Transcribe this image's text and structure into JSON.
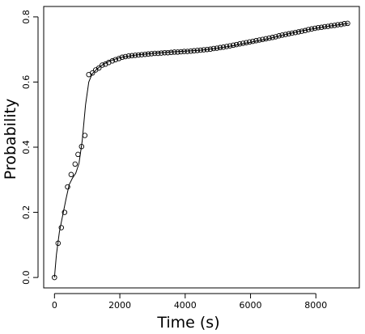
{
  "chart_data": {
    "type": "scatter",
    "title": "",
    "xlabel": "Time (s)",
    "ylabel": "Probability",
    "xlim": [
      0,
      9000
    ],
    "ylim": [
      0,
      0.8
    ],
    "x_ticks": [
      0,
      2000,
      4000,
      6000,
      8000
    ],
    "y_ticks": [
      0.0,
      0.2,
      0.4,
      0.6,
      0.8
    ],
    "x_tick_labels": [
      "0",
      "2000",
      "4000",
      "6000",
      "8000"
    ],
    "y_tick_labels": [
      "0.0",
      "0.2",
      "0.4",
      "0.6",
      "0.8"
    ],
    "grid": false,
    "legend": "none",
    "series": [
      {
        "kind": "points",
        "marker": "open-circle",
        "x": [
          0,
          110,
          210,
          310,
          400,
          510,
          630,
          720,
          830,
          930,
          1050,
          1160,
          1260,
          1360,
          1460,
          1560,
          1660,
          1770,
          1870,
          1970,
          2070,
          2170,
          2270,
          2370,
          2470,
          2570,
          2670,
          2770,
          2870,
          2970,
          3070,
          3170,
          3270,
          3370,
          3470,
          3570,
          3670,
          3770,
          3870,
          3970,
          4070,
          4170,
          4270,
          4370,
          4470,
          4570,
          4670,
          4770,
          4870,
          4970,
          5070,
          5170,
          5270,
          5370,
          5470,
          5570,
          5670,
          5770,
          5870,
          5970,
          6070,
          6170,
          6270,
          6370,
          6470,
          6570,
          6670,
          6770,
          6870,
          6970,
          7070,
          7170,
          7270,
          7370,
          7470,
          7570,
          7670,
          7770,
          7870,
          7970,
          8070,
          8170,
          8270,
          8370,
          8470,
          8570,
          8670,
          8770,
          8870,
          8970
        ],
        "y": [
          0.0,
          0.105,
          0.153,
          0.2,
          0.278,
          0.316,
          0.348,
          0.378,
          0.402,
          0.436,
          0.623,
          0.628,
          0.637,
          0.643,
          0.652,
          0.655,
          0.66,
          0.665,
          0.669,
          0.672,
          0.676,
          0.678,
          0.68,
          0.681,
          0.682,
          0.683,
          0.684,
          0.685,
          0.686,
          0.687,
          0.688,
          0.688,
          0.689,
          0.69,
          0.69,
          0.691,
          0.692,
          0.692,
          0.693,
          0.694,
          0.694,
          0.695,
          0.696,
          0.697,
          0.698,
          0.699,
          0.7,
          0.701,
          0.703,
          0.704,
          0.706,
          0.707,
          0.709,
          0.711,
          0.713,
          0.715,
          0.717,
          0.719,
          0.721,
          0.723,
          0.725,
          0.727,
          0.729,
          0.731,
          0.733,
          0.735,
          0.737,
          0.739,
          0.742,
          0.744,
          0.746,
          0.748,
          0.75,
          0.752,
          0.754,
          0.756,
          0.758,
          0.761,
          0.763,
          0.765,
          0.767,
          0.768,
          0.77,
          0.771,
          0.773,
          0.774,
          0.776,
          0.777,
          0.779,
          0.78
        ]
      },
      {
        "kind": "line",
        "x": [
          0,
          60,
          150,
          250,
          350,
          450,
          550,
          650,
          750,
          850,
          950,
          1050,
          1150,
          1300,
          1500,
          1700,
          2000,
          2500,
          3000,
          3500,
          4000,
          4500,
          5000,
          5500,
          6000,
          6500,
          7000,
          7500,
          8000,
          8500,
          9000
        ],
        "y": [
          0.0,
          0.07,
          0.14,
          0.19,
          0.24,
          0.285,
          0.305,
          0.32,
          0.35,
          0.42,
          0.53,
          0.6,
          0.625,
          0.64,
          0.655,
          0.665,
          0.675,
          0.683,
          0.688,
          0.692,
          0.695,
          0.698,
          0.704,
          0.712,
          0.722,
          0.732,
          0.744,
          0.756,
          0.765,
          0.773,
          0.78
        ]
      }
    ]
  }
}
